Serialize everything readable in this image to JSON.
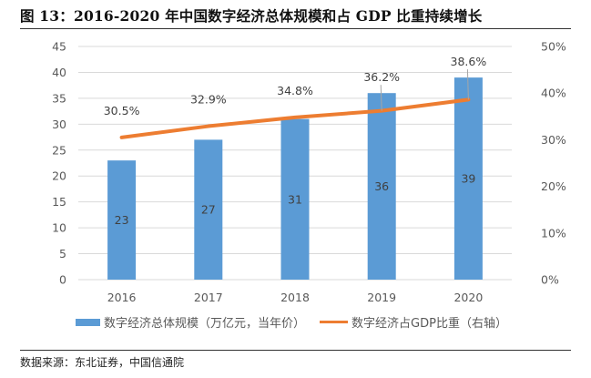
{
  "header": {
    "title": "图 13：2016-2020 年中国数字经济总体规模和占 GDP 比重持续增长"
  },
  "footer": {
    "source": "数据来源：东北证券，中国信通院"
  },
  "colors": {
    "bar": "#5b9bd5",
    "line": "#ed7d31",
    "grid": "#d9d9d9",
    "tick_text": "#595959"
  },
  "chart_data": {
    "type": "bar",
    "title": "2016-2020 年中国数字经济总体规模和占 GDP 比重持续增长",
    "xlabel": "",
    "ylabel": "",
    "categories": [
      "2016",
      "2017",
      "2018",
      "2019",
      "2020"
    ],
    "series": [
      {
        "name": "数字经济总体规模（万亿元，当年价）",
        "type": "bar",
        "axis": "left",
        "values": [
          23,
          27,
          31,
          36,
          39
        ],
        "labels": [
          "23",
          "27",
          "31",
          "36",
          "39"
        ]
      },
      {
        "name": "数字经济占GDP比重（右轴）",
        "type": "line",
        "axis": "right",
        "values": [
          30.5,
          32.9,
          34.8,
          36.2,
          38.6
        ],
        "labels": [
          "30.5%",
          "32.9%",
          "34.8%",
          "36.2%",
          "38.6%"
        ]
      }
    ],
    "left_axis": {
      "ylim": [
        0,
        45
      ],
      "ticks": [
        "0",
        "5",
        "10",
        "15",
        "20",
        "25",
        "30",
        "35",
        "40",
        "45"
      ]
    },
    "right_axis": {
      "ylim": [
        0,
        50
      ],
      "ticks": [
        "0%",
        "10%",
        "20%",
        "30%",
        "40%",
        "50%"
      ]
    },
    "grid": true,
    "legend_position": "bottom"
  }
}
